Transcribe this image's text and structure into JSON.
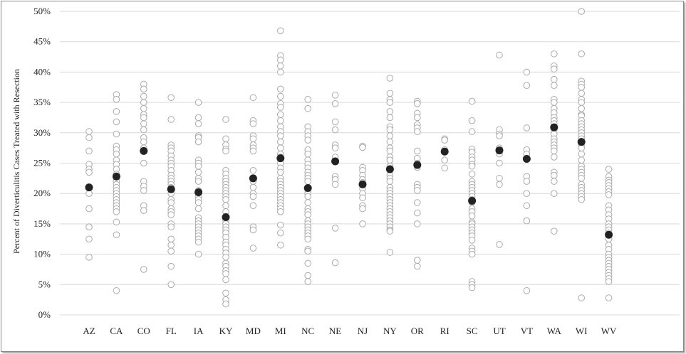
{
  "chart_data": {
    "type": "scatter",
    "title": "",
    "xlabel": "",
    "ylabel": "Percent of Diverticulitis Cases Treated with Resection",
    "ylim": [
      0,
      50
    ],
    "yticks": [
      "0%",
      "5%",
      "10%",
      "15%",
      "20%",
      "25%",
      "30%",
      "35%",
      "40%",
      "45%",
      "50%"
    ],
    "grid": true,
    "categories": [
      "AZ",
      "CA",
      "CO",
      "FL",
      "IA",
      "KY",
      "MD",
      "MI",
      "NC",
      "NE",
      "NJ",
      "NY",
      "OR",
      "RI",
      "SC",
      "UT",
      "VT",
      "WA",
      "WI",
      "WV"
    ],
    "colors": {
      "hospital_marker": "#aaaaaa",
      "state_marker": "#222222",
      "grid": "#d9d9d9"
    },
    "series": [
      {
        "role": "hospital",
        "values": [
          [
            30.2,
            29.2,
            27.0,
            24.8,
            24.0,
            23.5,
            20.0,
            17.5,
            14.5,
            12.5,
            9.5
          ],
          [
            36.3,
            35.5,
            33.5,
            31.8,
            29.8,
            27.8,
            27.2,
            26.5,
            25.5,
            24.8,
            24.0,
            23.2,
            22.5,
            22.0,
            21.5,
            21.0,
            20.5,
            20.0,
            19.5,
            19.0,
            18.5,
            18.0,
            17.5,
            17.0,
            15.3,
            13.2,
            4.0
          ],
          [
            38.0,
            37.2,
            36.0,
            35.0,
            34.0,
            33.0,
            32.5,
            31.5,
            30.5,
            29.2,
            28.5,
            27.5,
            25.0,
            22.0,
            21.2,
            20.5,
            18.0,
            17.2,
            7.5
          ],
          [
            35.8,
            32.2,
            28.0,
            27.5,
            27.0,
            26.2,
            25.5,
            25.0,
            24.5,
            23.8,
            23.0,
            22.5,
            22.0,
            21.5,
            21.0,
            20.0,
            19.0,
            18.5,
            17.5,
            17.0,
            16.5,
            15.0,
            14.5,
            12.5,
            11.5,
            10.5,
            8.0,
            5.0
          ],
          [
            35.0,
            32.5,
            31.5,
            29.5,
            29.2,
            28.5,
            25.5,
            25.0,
            24.5,
            23.5,
            22.5,
            22.0,
            20.5,
            19.5,
            19.0,
            18.5,
            17.5,
            16.0,
            15.5,
            15.0,
            14.5,
            14.0,
            13.5,
            13.0,
            12.5,
            12.0,
            10.0
          ],
          [
            32.2,
            29.0,
            28.0,
            27.3,
            27.0,
            23.8,
            23.2,
            22.5,
            22.0,
            21.5,
            21.0,
            20.5,
            20.0,
            19.5,
            19.0,
            18.0,
            17.0,
            16.0,
            15.5,
            15.0,
            14.5,
            14.0,
            13.5,
            12.8,
            12.0,
            11.5,
            10.8,
            10.2,
            9.5,
            8.5,
            8.0,
            7.3,
            6.8,
            5.8,
            3.6,
            2.5,
            1.8
          ],
          [
            35.8,
            32.0,
            31.5,
            29.5,
            29.0,
            28.0,
            27.5,
            27.0,
            23.8,
            22.0,
            21.0,
            20.0,
            19.5,
            18.0,
            14.5,
            14.0,
            11.0
          ],
          [
            46.8,
            42.7,
            42.0,
            41.0,
            40.0,
            37.2,
            36.0,
            34.8,
            34.2,
            33.0,
            32.0,
            31.0,
            30.2,
            29.5,
            28.5,
            27.5,
            26.5,
            26.0,
            25.0,
            24.2,
            23.5,
            22.5,
            22.0,
            21.5,
            21.0,
            20.5,
            20.0,
            19.5,
            19.0,
            18.5,
            18.0,
            17.5,
            17.0,
            14.8,
            13.5,
            11.5
          ],
          [
            35.5,
            34.0,
            31.0,
            30.2,
            29.5,
            28.8,
            27.2,
            26.5,
            25.5,
            24.8,
            24.2,
            23.5,
            23.0,
            22.5,
            22.0,
            21.0,
            20.5,
            20.0,
            19.5,
            18.5,
            17.5,
            17.0,
            16.5,
            15.5,
            15.0,
            14.5,
            14.0,
            13.5,
            13.0,
            12.5,
            10.8,
            10.5,
            8.5,
            6.5,
            5.5
          ],
          [
            36.2,
            34.8,
            31.8,
            30.5,
            28.0,
            27.5,
            26.0,
            22.8,
            22.3,
            21.5,
            14.3,
            8.6
          ],
          [
            27.8,
            27.6,
            24.3,
            23.8,
            23.0,
            22.3,
            21.8,
            21.3,
            20.8,
            20.0,
            19.3,
            18.0,
            17.5,
            15.0
          ],
          [
            39.0,
            36.5,
            35.5,
            35.0,
            33.5,
            32.5,
            31.0,
            30.5,
            29.5,
            28.5,
            27.5,
            27.0,
            26.0,
            25.5,
            24.5,
            23.8,
            23.0,
            22.5,
            22.0,
            21.0,
            20.5,
            20.0,
            19.5,
            19.0,
            18.5,
            18.0,
            17.5,
            17.0,
            16.5,
            16.0,
            15.5,
            15.0,
            14.5,
            14.0,
            13.8,
            10.3
          ],
          [
            35.2,
            34.8,
            33.2,
            32.5,
            31.3,
            30.8,
            30.2,
            27.0,
            25.8,
            25.0,
            24.8,
            24.3,
            21.5,
            21.0,
            20.5,
            18.5,
            16.8,
            15.0,
            9.0,
            8.0
          ],
          [
            29.0,
            28.8,
            27.2,
            25.5,
            24.2
          ],
          [
            35.2,
            32.0,
            30.2,
            27.3,
            26.8,
            26.0,
            25.5,
            24.8,
            24.5,
            23.2,
            22.0,
            21.5,
            21.0,
            20.5,
            20.0,
            19.5,
            19.0,
            18.5,
            17.5,
            17.0,
            16.3,
            15.3,
            15.0,
            14.5,
            14.0,
            13.5,
            13.0,
            12.3,
            11.0,
            10.5,
            10.0,
            5.5,
            5.0,
            4.5
          ],
          [
            42.8,
            30.5,
            29.8,
            29.5,
            27.5,
            26.5,
            25.0,
            22.5,
            21.5,
            11.6
          ],
          [
            40.0,
            37.8,
            30.8,
            27.2,
            26.5,
            22.8,
            22.0,
            20.0,
            18.0,
            15.5,
            4.0
          ],
          [
            43.0,
            41.0,
            40.5,
            38.8,
            37.8,
            35.5,
            35.0,
            34.0,
            33.3,
            32.5,
            32.0,
            31.5,
            30.5,
            29.8,
            29.0,
            28.5,
            28.0,
            27.5,
            27.0,
            26.0,
            23.5,
            23.0,
            22.0,
            20.0,
            13.8
          ],
          [
            50.0,
            43.0,
            38.5,
            38.0,
            37.5,
            36.5,
            35.5,
            35.0,
            34.0,
            33.0,
            32.8,
            32.0,
            31.5,
            31.0,
            30.5,
            30.0,
            29.5,
            29.0,
            28.0,
            27.5,
            26.5,
            25.5,
            24.5,
            24.0,
            23.5,
            23.0,
            22.5,
            21.5,
            21.0,
            20.5,
            20.0,
            19.5,
            19.0,
            2.8
          ],
          [
            24.0,
            22.8,
            22.2,
            21.8,
            21.3,
            20.8,
            20.3,
            19.8,
            18.0,
            17.3,
            16.5,
            15.8,
            15.0,
            14.5,
            14.0,
            13.5,
            12.5,
            11.5,
            10.8,
            10.0,
            9.5,
            9.0,
            8.5,
            8.0,
            7.5,
            7.0,
            6.5,
            6.0,
            5.5,
            2.8
          ]
        ]
      },
      {
        "role": "state",
        "values": [
          21.0,
          22.8,
          27.0,
          20.7,
          20.2,
          16.1,
          22.5,
          25.8,
          20.9,
          25.3,
          21.5,
          24.0,
          24.7,
          26.9,
          18.8,
          27.1,
          25.7,
          30.9,
          28.5,
          13.2
        ]
      }
    ]
  }
}
